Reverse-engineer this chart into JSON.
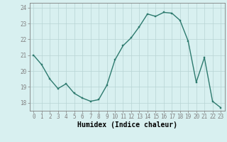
{
  "x": [
    0,
    1,
    2,
    3,
    4,
    5,
    6,
    7,
    8,
    9,
    10,
    11,
    12,
    13,
    14,
    15,
    16,
    17,
    18,
    19,
    20,
    21,
    22,
    23
  ],
  "y": [
    21.0,
    20.4,
    19.5,
    18.9,
    19.2,
    18.6,
    18.3,
    18.1,
    18.2,
    19.1,
    20.7,
    21.6,
    22.1,
    22.8,
    23.6,
    23.45,
    23.7,
    23.65,
    23.2,
    21.9,
    19.3,
    20.85,
    18.1,
    17.7
  ],
  "xlim": [
    -0.5,
    23.5
  ],
  "ylim": [
    17.5,
    24.3
  ],
  "yticks": [
    18,
    19,
    20,
    21,
    22,
    23,
    24
  ],
  "xticks": [
    0,
    1,
    2,
    3,
    4,
    5,
    6,
    7,
    8,
    9,
    10,
    11,
    12,
    13,
    14,
    15,
    16,
    17,
    18,
    19,
    20,
    21,
    22,
    23
  ],
  "xlabel": "Humidex (Indice chaleur)",
  "line_color": "#2d7a6e",
  "marker_color": "#2d7a6e",
  "bg_color": "#d8f0f0",
  "grid_color": "#b8d4d4",
  "axis_color": "#808080",
  "tick_fontsize": 5.5,
  "xlabel_fontsize": 7.0,
  "line_width": 1.0,
  "marker_size": 2.0
}
